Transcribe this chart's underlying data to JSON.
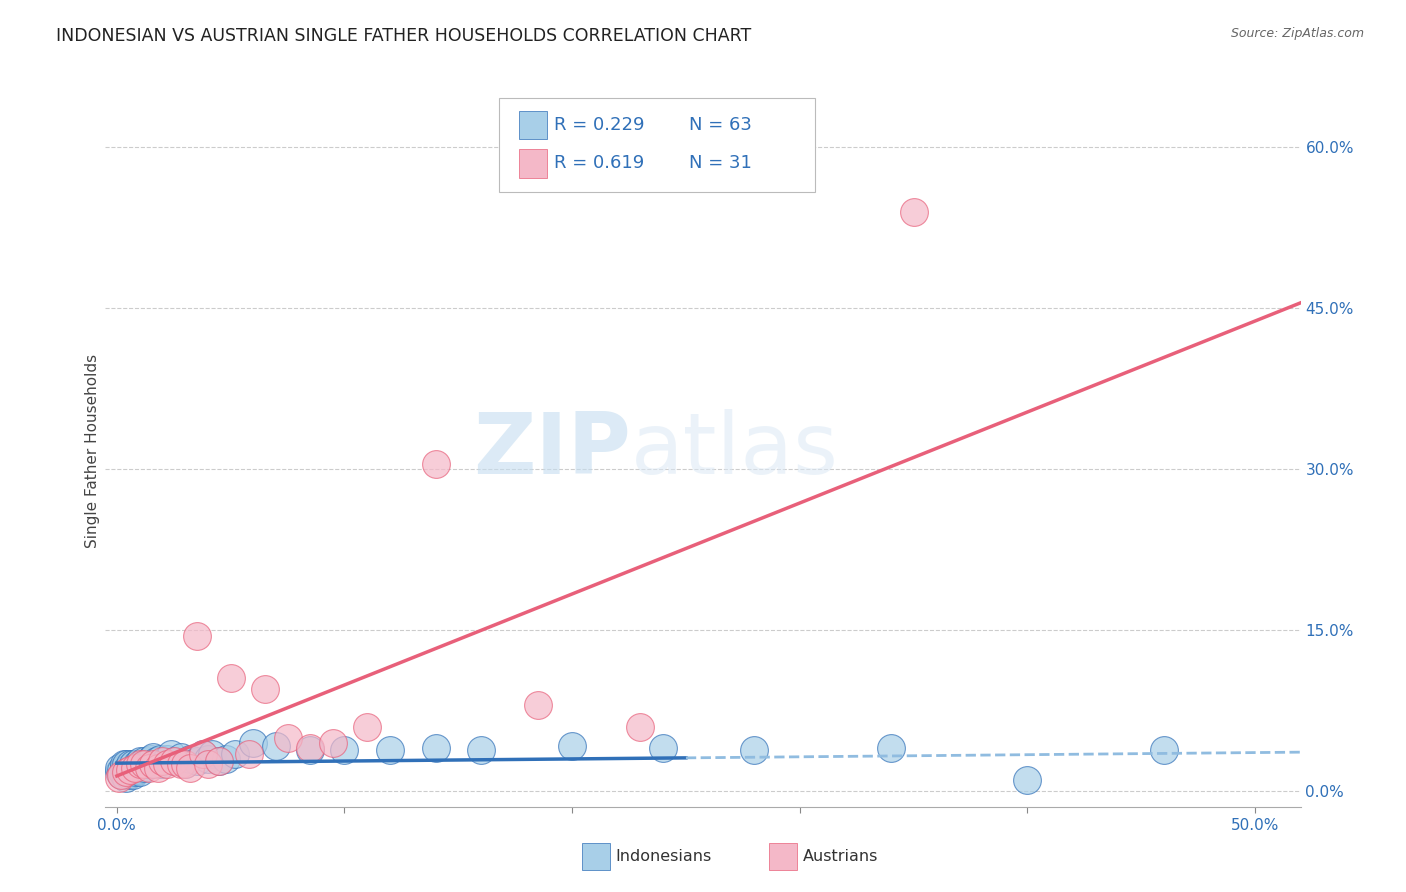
{
  "title": "INDONESIAN VS AUSTRIAN SINGLE FATHER HOUSEHOLDS CORRELATION CHART",
  "source": "Source: ZipAtlas.com",
  "ylabel": "Single Father Households",
  "ytick_labels": [
    "0.0%",
    "15.0%",
    "30.0%",
    "45.0%",
    "60.0%"
  ],
  "ytick_values": [
    0.0,
    0.15,
    0.3,
    0.45,
    0.6
  ],
  "xtick_values": [
    0.0,
    0.1,
    0.2,
    0.3,
    0.4,
    0.5
  ],
  "xlim": [
    -0.005,
    0.52
  ],
  "ylim": [
    -0.015,
    0.65
  ],
  "legend_label1": "Indonesians",
  "legend_label2": "Austrians",
  "R1": 0.229,
  "N1": 63,
  "R2": 0.619,
  "N2": 31,
  "color_blue": "#a8cfe8",
  "color_pink": "#f4b8c8",
  "color_blue_line": "#3070b8",
  "color_pink_line": "#e8607a",
  "color_blue_line_dashed": "#90bce0",
  "watermark_zip": "ZIP",
  "watermark_atlas": "atlas",
  "indonesian_x": [
    0.001,
    0.001,
    0.002,
    0.002,
    0.003,
    0.003,
    0.003,
    0.004,
    0.004,
    0.004,
    0.005,
    0.005,
    0.005,
    0.006,
    0.006,
    0.006,
    0.007,
    0.007,
    0.007,
    0.008,
    0.008,
    0.009,
    0.009,
    0.01,
    0.01,
    0.011,
    0.012,
    0.012,
    0.013,
    0.014,
    0.015,
    0.015,
    0.016,
    0.017,
    0.018,
    0.019,
    0.02,
    0.022,
    0.024,
    0.025,
    0.028,
    0.03,
    0.032,
    0.035,
    0.038,
    0.04,
    0.042,
    0.045,
    0.048,
    0.052,
    0.06,
    0.07,
    0.085,
    0.1,
    0.12,
    0.14,
    0.16,
    0.2,
    0.24,
    0.28,
    0.34,
    0.4,
    0.46
  ],
  "indonesian_y": [
    0.018,
    0.022,
    0.015,
    0.02,
    0.015,
    0.022,
    0.025,
    0.012,
    0.02,
    0.025,
    0.015,
    0.018,
    0.022,
    0.016,
    0.02,
    0.025,
    0.015,
    0.02,
    0.025,
    0.018,
    0.022,
    0.02,
    0.025,
    0.018,
    0.028,
    0.025,
    0.022,
    0.028,
    0.025,
    0.028,
    0.03,
    0.025,
    0.032,
    0.028,
    0.025,
    0.03,
    0.025,
    0.03,
    0.035,
    0.028,
    0.032,
    0.025,
    0.03,
    0.028,
    0.035,
    0.03,
    0.035,
    0.028,
    0.03,
    0.035,
    0.045,
    0.042,
    0.038,
    0.038,
    0.038,
    0.04,
    0.038,
    0.042,
    0.04,
    0.038,
    0.04,
    0.01,
    0.038
  ],
  "austrian_x": [
    0.001,
    0.002,
    0.004,
    0.006,
    0.008,
    0.01,
    0.012,
    0.014,
    0.016,
    0.018,
    0.02,
    0.022,
    0.025,
    0.028,
    0.03,
    0.032,
    0.035,
    0.038,
    0.04,
    0.045,
    0.05,
    0.058,
    0.065,
    0.075,
    0.085,
    0.095,
    0.11,
    0.14,
    0.185,
    0.23,
    0.35
  ],
  "austrian_y": [
    0.012,
    0.015,
    0.018,
    0.02,
    0.022,
    0.025,
    0.025,
    0.022,
    0.025,
    0.022,
    0.028,
    0.025,
    0.028,
    0.025,
    0.025,
    0.022,
    0.145,
    0.035,
    0.025,
    0.028,
    0.105,
    0.035,
    0.095,
    0.05,
    0.04,
    0.045,
    0.06,
    0.305,
    0.08,
    0.06,
    0.54
  ]
}
